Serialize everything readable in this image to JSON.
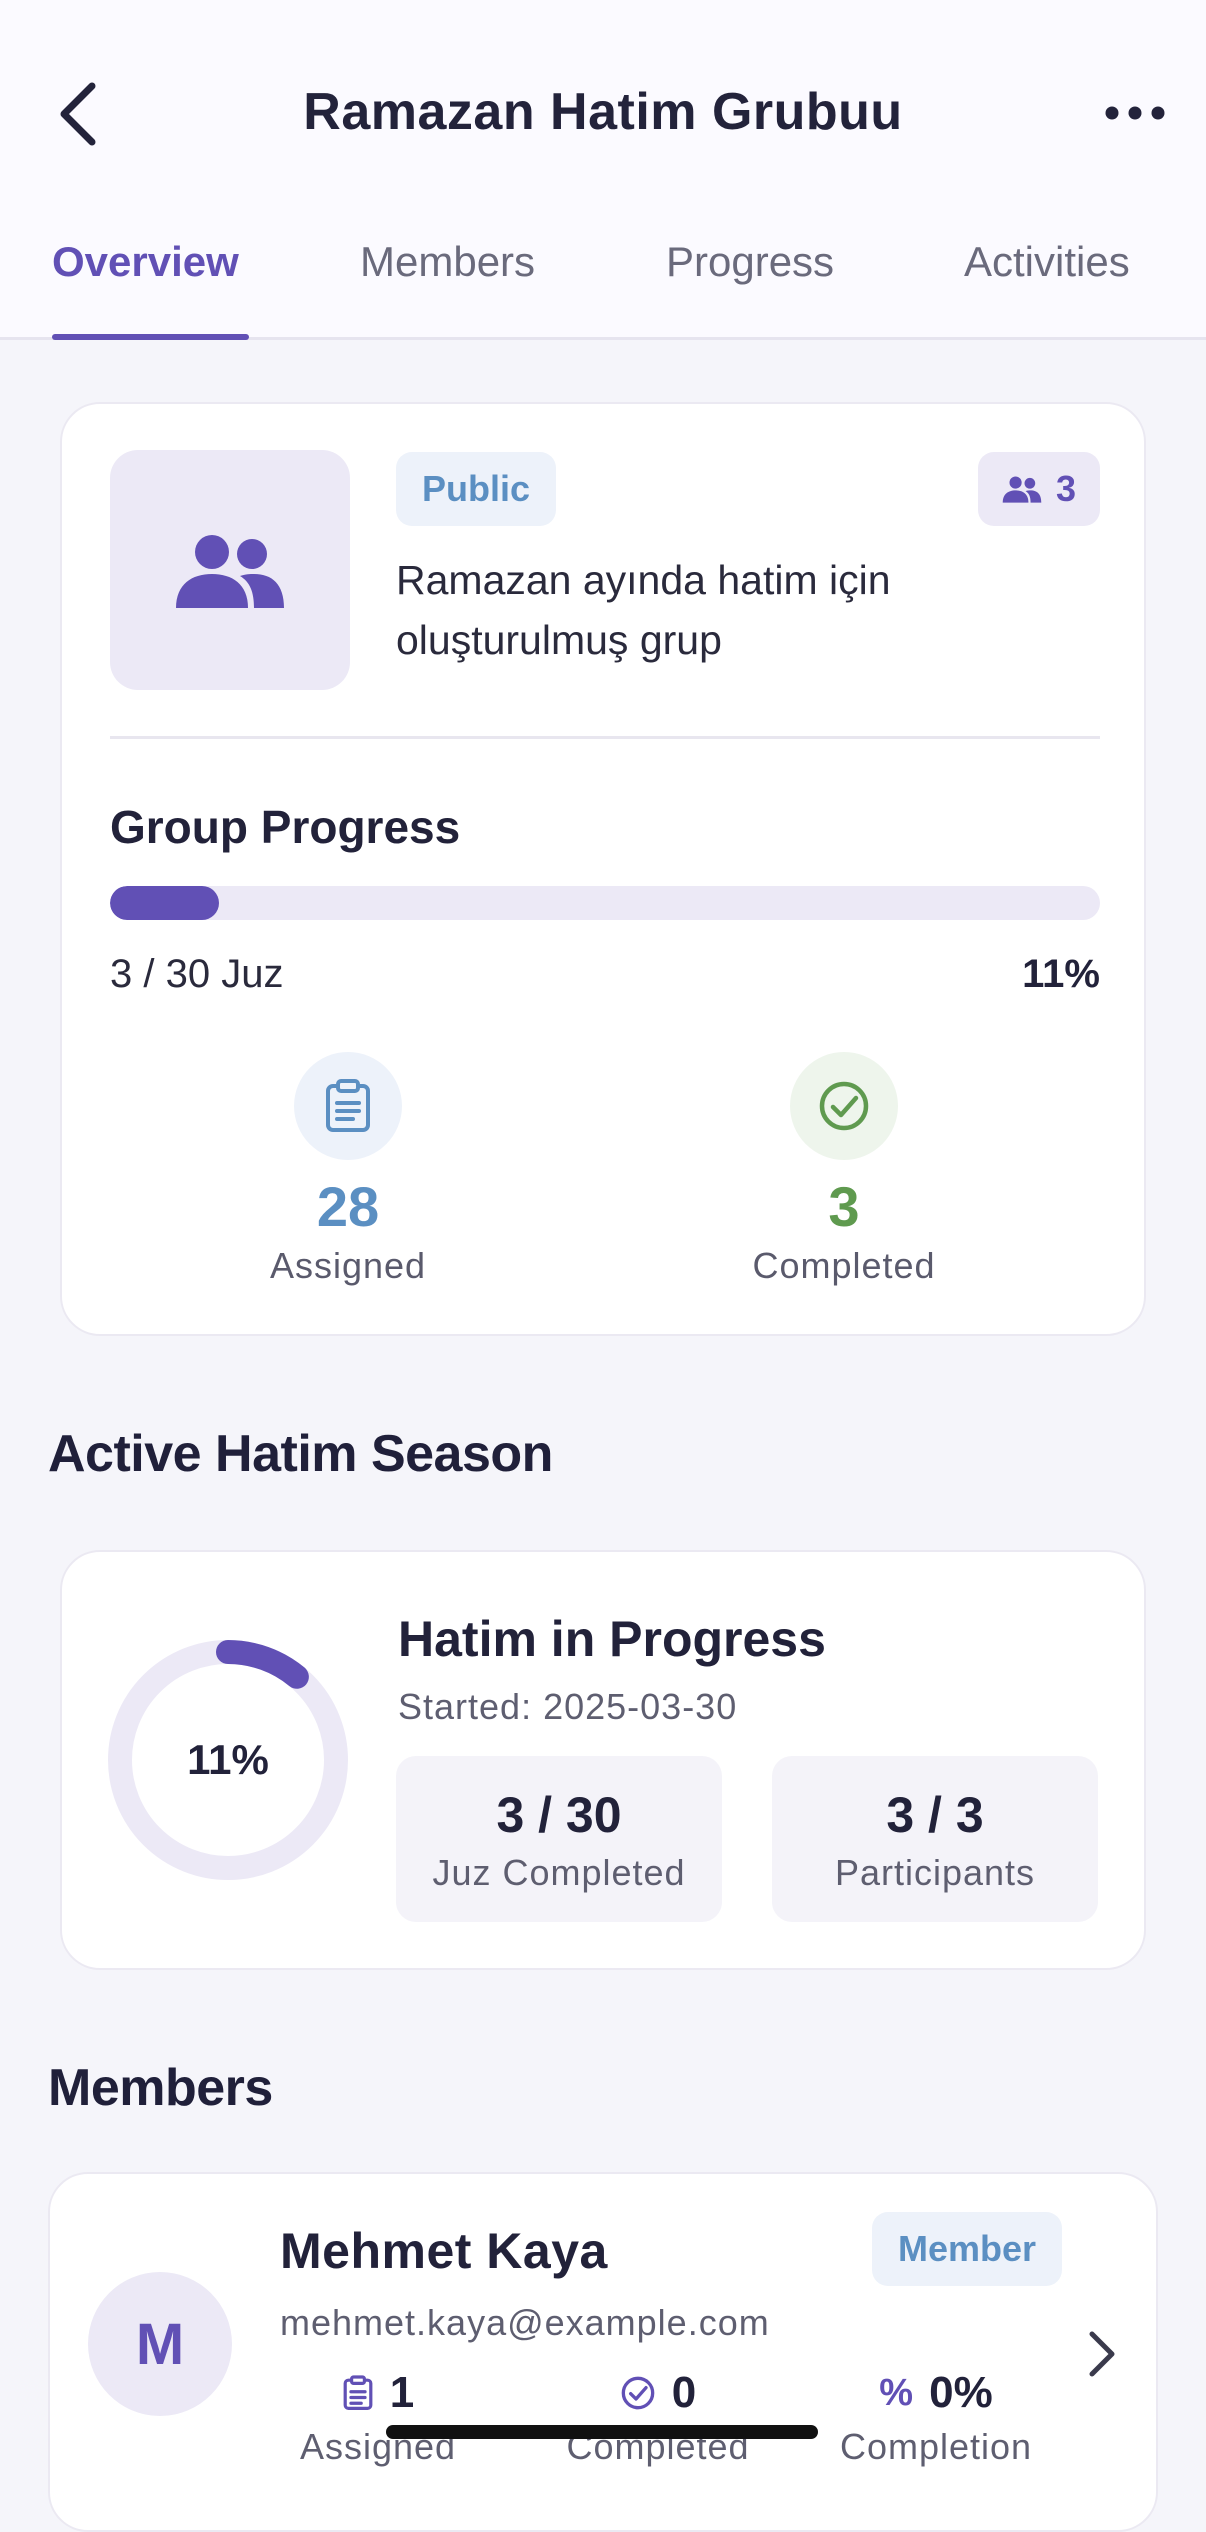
{
  "header": {
    "title": "Ramazan Hatim Grubuu",
    "tabs": [
      {
        "label": "Overview",
        "active": true
      },
      {
        "label": "Members",
        "active": false
      },
      {
        "label": "Progress",
        "active": false
      },
      {
        "label": "Activities",
        "active": false
      }
    ],
    "accent": "#6150b5"
  },
  "group": {
    "visibility": "Public",
    "member_count": "3",
    "description": "Ramazan ayında hatim için oluşturulmuş grup",
    "progress_title": "Group Progress",
    "progress_text": "3 / 30 Juz",
    "progress_percent": "11%",
    "progress_value": 0.11,
    "stats": {
      "assigned": {
        "value": "28",
        "label": "Assigned",
        "color": "#5b8fc2"
      },
      "completed": {
        "value": "3",
        "label": "Completed",
        "color": "#5f9a4f"
      }
    }
  },
  "season": {
    "section_title": "Active Hatim Season",
    "title": "Hatim in Progress",
    "started": "Started: 2025-03-30",
    "ring_percent": "11%",
    "ring_value": 0.11,
    "juz": {
      "value": "3 / 30",
      "label": "Juz Completed"
    },
    "participants": {
      "value": "3 / 3",
      "label": "Participants"
    }
  },
  "members": {
    "section_title": "Members",
    "items": [
      {
        "initial": "M",
        "name": "Mehmet Kaya",
        "role": "Member",
        "email": "mehmet.kaya@example.com",
        "assigned_value": "1",
        "assigned_label": "Assigned",
        "completed_value": "0",
        "completed_label": "Completed",
        "completion_value": "0%",
        "completion_label": "Completion"
      }
    ]
  }
}
